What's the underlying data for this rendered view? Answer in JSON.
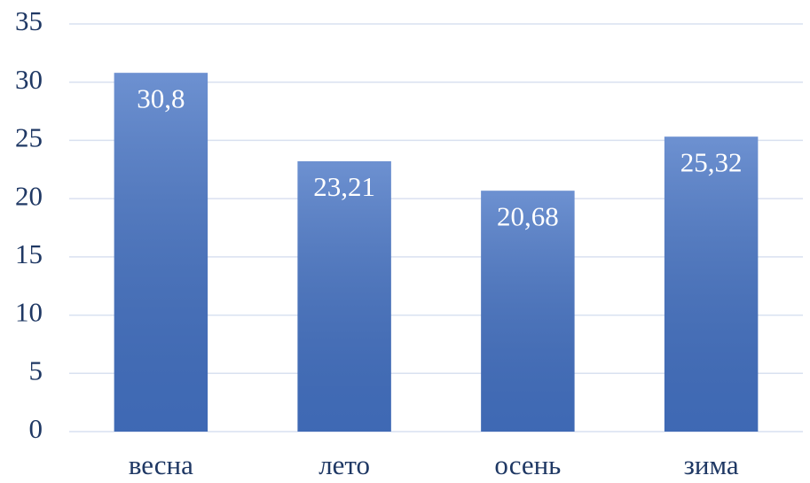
{
  "chart_data": {
    "type": "bar",
    "categories": [
      "весна",
      "лето",
      "осень",
      "зима"
    ],
    "values": [
      30.8,
      23.21,
      20.68,
      25.32
    ],
    "value_labels": [
      "30,8",
      "23,21",
      "20,68",
      "25,32"
    ],
    "color": "#4472c4",
    "ylim": [
      0,
      35
    ],
    "yticks": [
      0,
      5,
      10,
      15,
      20,
      25,
      30,
      35
    ],
    "grid": true
  }
}
